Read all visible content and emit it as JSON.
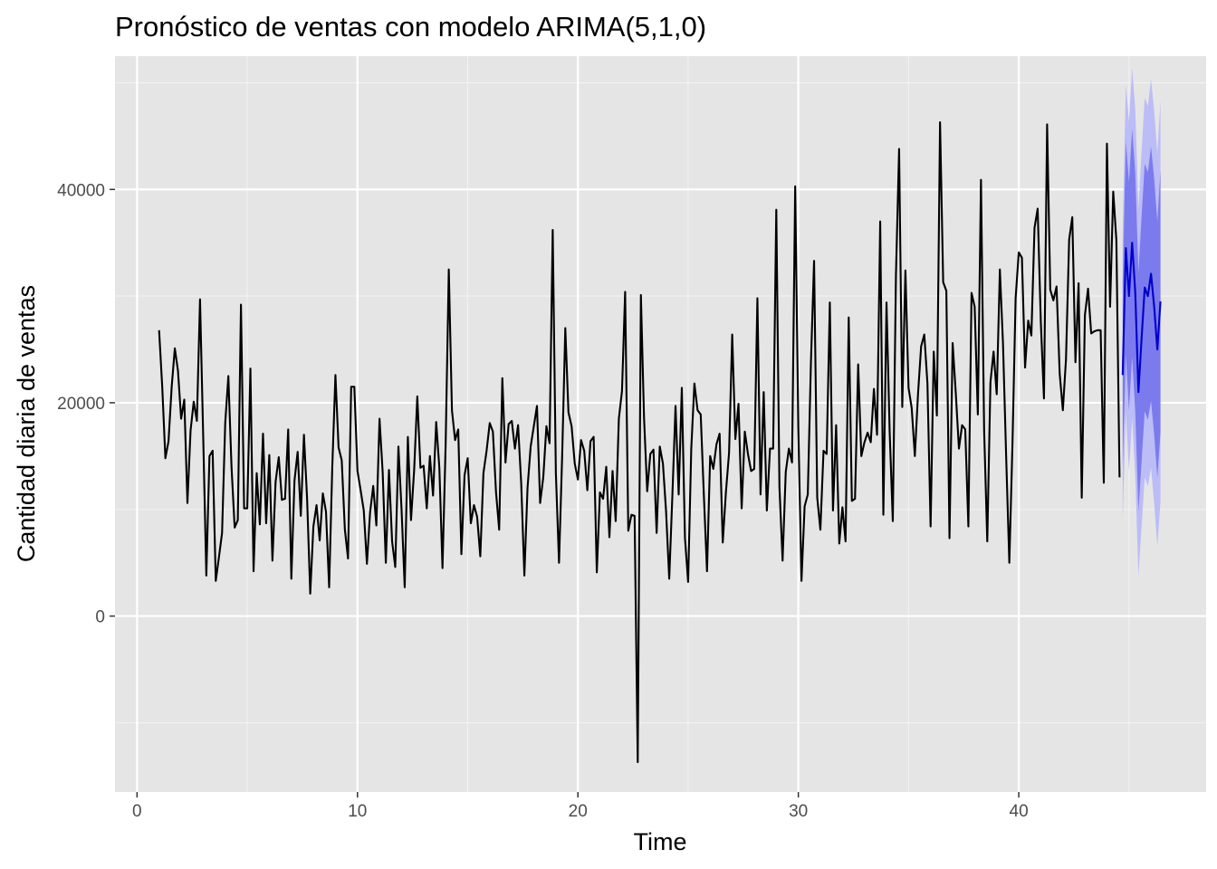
{
  "chart_data": {
    "type": "line",
    "title": "Pronóstico de ventas con modelo ARIMA(5,1,0)",
    "xlabel": "Time",
    "ylabel": "Cantidad diaria de ventas",
    "xlim": [
      -1,
      48.5
    ],
    "ylim": [
      -16500,
      52500
    ],
    "x_ticks": [
      0,
      10,
      20,
      30,
      40
    ],
    "y_ticks": [
      0,
      20000,
      40000
    ],
    "grid": true,
    "legend": "none",
    "colors": {
      "panel_background": "#e5e5e5",
      "grid_major": "#ffffff",
      "grid_minor": "#f2f2f2",
      "history_line": "#000000",
      "forecast_line": "#0000cc",
      "interval_80": "#7b7bee",
      "interval_95": "#bcbcf7"
    },
    "series": [
      {
        "role": "observed",
        "x_start": 1.0,
        "x_step": 0.142857,
        "values": [
          26800,
          21500,
          14800,
          16400,
          21500,
          25100,
          23000,
          18500,
          20300,
          10600,
          17400,
          20100,
          18300,
          29700,
          17000,
          3800,
          15000,
          15500,
          3300,
          5500,
          7800,
          18100,
          22500,
          14000,
          8300,
          9000,
          29200,
          10100,
          10100,
          23200,
          4200,
          13400,
          8600,
          17100,
          8700,
          15100,
          5200,
          12600,
          14900,
          10900,
          11000,
          17500,
          3500,
          12700,
          15400,
          9400,
          17000,
          11000,
          2100,
          8400,
          10400,
          7100,
          11500,
          9800,
          2700,
          14000,
          22600,
          15800,
          14600,
          8100,
          5400,
          21500,
          21500,
          13600,
          11800,
          9900,
          4900,
          9700,
          12200,
          8500,
          18500,
          13500,
          5000,
          13700,
          7000,
          4600,
          15900,
          10000,
          2700,
          16800,
          9000,
          13700,
          20600,
          13900,
          14100,
          10100,
          15000,
          11300,
          18200,
          13900,
          4500,
          16100,
          32500,
          19300,
          16500,
          17500,
          5800,
          13200,
          14800,
          8700,
          10400,
          9300,
          5600,
          13400,
          15500,
          18100,
          17300,
          11600,
          8100,
          22300,
          14400,
          18000,
          18300,
          15700,
          17900,
          12400,
          3800,
          12000,
          15900,
          17800,
          19700,
          10600,
          13000,
          17800,
          16200,
          36200,
          13400,
          5000,
          15000,
          27000,
          19100,
          17800,
          14300,
          12800,
          16500,
          15500,
          11800,
          16400,
          16800,
          4100,
          11600,
          11000,
          14000,
          7400,
          13600,
          8900,
          18500,
          21100,
          30400,
          8000,
          9500,
          9400,
          -13700,
          30100,
          18600,
          11700,
          15200,
          15600,
          7800,
          15900,
          14300,
          9800,
          3500,
          11300,
          19700,
          11400,
          21400,
          7300,
          3200,
          15700,
          21800,
          19300,
          18900,
          11300,
          4200,
          15000,
          13800,
          16100,
          17100,
          6900,
          11600,
          15300,
          26400,
          16600,
          19900,
          10100,
          17300,
          15200,
          13600,
          13800,
          29800,
          11400,
          21000,
          9900,
          15700,
          15700,
          38100,
          12100,
          5200,
          13500,
          15700,
          14400,
          40300,
          17600,
          3300,
          10300,
          11400,
          23800,
          33300,
          11100,
          8100,
          15500,
          15200,
          29400,
          9900,
          17900,
          6800,
          10200,
          7000,
          28000,
          10800,
          11000,
          23600,
          15000,
          16300,
          17200,
          16300,
          21300,
          17000,
          37000,
          9500,
          29400,
          17300,
          8900,
          32000,
          43800,
          19600,
          32400,
          21400,
          19500,
          15000,
          20800,
          25300,
          26400,
          21800,
          8400,
          24800,
          18800,
          46300,
          31300,
          30500,
          7300,
          25600,
          20900,
          15700,
          17900,
          17500,
          8400,
          30300,
          29000,
          18900,
          40900,
          17400,
          7000,
          21900,
          24800,
          20800,
          32500,
          25500,
          14900,
          5000,
          16100,
          29800,
          34100,
          33600,
          23300,
          27700,
          26300,
          36400,
          38200,
          27600,
          20400,
          46100,
          30600,
          29600,
          30900,
          22700,
          19300,
          24100,
          35300,
          37400,
          23800,
          31200,
          11100,
          28200,
          30700,
          26500,
          26700,
          26800,
          26800,
          12500,
          44300,
          29000,
          39800,
          35200,
          13000
        ]
      },
      {
        "role": "forecast",
        "x": [
          44.714,
          44.857,
          45.0,
          45.143,
          45.286,
          45.429,
          45.571,
          45.714,
          45.857,
          46.0,
          46.143,
          46.286,
          46.429
        ],
        "values": [
          22600,
          34500,
          30000,
          35000,
          30300,
          21000,
          26000,
          30800,
          30000,
          32100,
          29000,
          25000,
          29500
        ],
        "lo80": [
          13800,
          24500,
          19300,
          24300,
          19100,
          9800,
          14500,
          19200,
          18400,
          20200,
          17000,
          13000,
          17200
        ],
        "hi80": [
          31400,
          44500,
          40700,
          45700,
          41500,
          32200,
          37500,
          42400,
          41600,
          44000,
          41000,
          37000,
          41800
        ],
        "lo95": [
          9000,
          19200,
          13600,
          18600,
          13100,
          3800,
          8400,
          13000,
          12200,
          13900,
          10600,
          6600,
          10700
        ],
        "hi95": [
          36200,
          49800,
          46400,
          51400,
          47500,
          38200,
          43600,
          48600,
          47800,
          50300,
          47400,
          43400,
          48300
        ]
      }
    ]
  }
}
